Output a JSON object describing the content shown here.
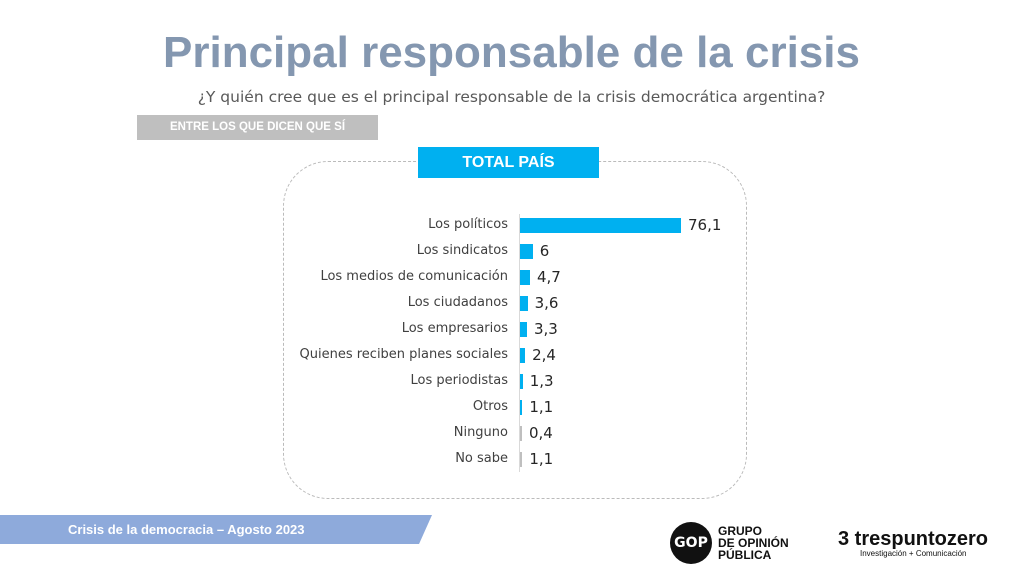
{
  "header": {
    "title": "Principal responsable de la crisis",
    "subtitle": "¿Y quién cree que es el principal responsable de la crisis democrática argentina?",
    "filter": "ENTRE LOS QUE DICEN QUE SÍ"
  },
  "chart_data": {
    "type": "bar",
    "orientation": "horizontal",
    "title": "TOTAL PAÍS",
    "categories": [
      "Los políticos",
      "Los sindicatos",
      "Los medios de comunicación",
      "Los ciudadanos",
      "Los empresarios",
      "Quienes reciben planes sociales",
      "Los periodistas",
      "Otros",
      "Ninguno",
      "No sabe"
    ],
    "values": [
      76.1,
      6,
      4.7,
      3.6,
      3.3,
      2.4,
      1.3,
      1.1,
      0.4,
      1.1
    ],
    "value_labels": [
      "76,1",
      "6",
      "4,7",
      "3,6",
      "3,3",
      "2,4",
      "1,3",
      "1,1",
      "0,4",
      "1,1"
    ],
    "colors": [
      "#00b0f0",
      "#00b0f0",
      "#00b0f0",
      "#00b0f0",
      "#00b0f0",
      "#00b0f0",
      "#00b0f0",
      "#00b0f0",
      "#bfbfbf",
      "#bfbfbf"
    ]
  },
  "footer": {
    "text": "Crisis de la democracia – Agosto 2023"
  },
  "logos": {
    "gop_mark": "GOP",
    "gop_text": "GRUPO DE OPINIÓN PÚBLICA",
    "tpz_name": "trespuntozero",
    "tpz_tag": "Investigación + Comunicación"
  }
}
